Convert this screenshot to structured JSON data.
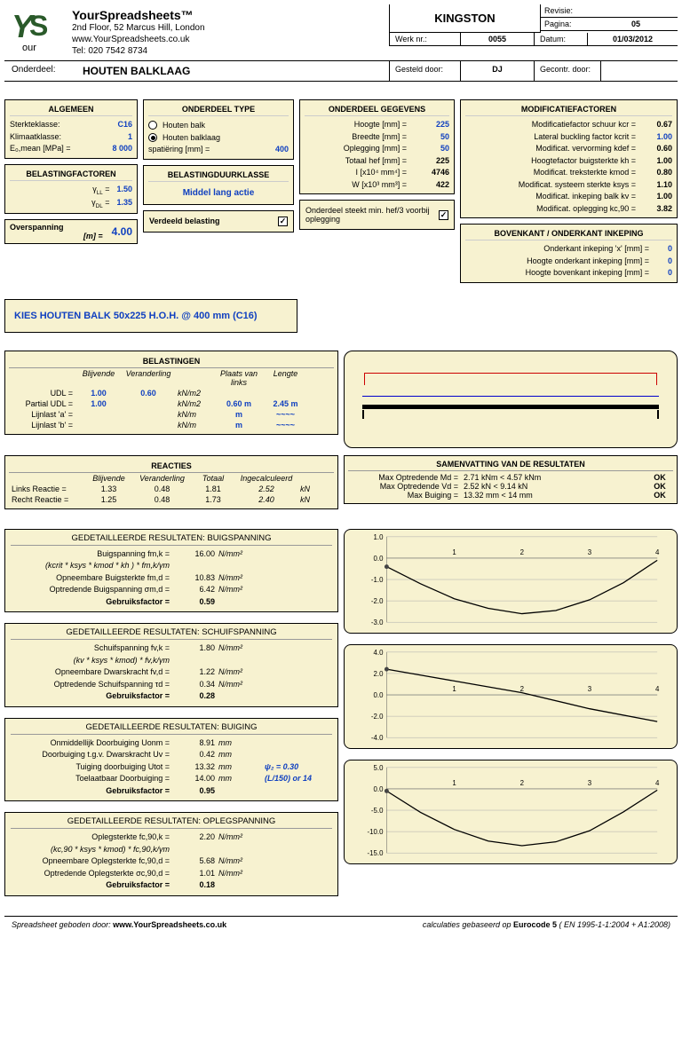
{
  "company": {
    "name": "YourSpreadsheets™",
    "addr1": "2nd Floor, 52 Marcus Hill, London",
    "web": "www.YourSpreadsheets.co.uk",
    "tel": "Tel: 020 7542 8734"
  },
  "title_block": {
    "project": "KINGSTON",
    "revisie_label": "Revisie:",
    "revisie": "",
    "pagina_label": "Pagina:",
    "pagina": "05",
    "werknr_label": "Werk nr.:",
    "werknr": "0055",
    "datum_label": "Datum:",
    "datum": "01/03/2012",
    "onderdeel_label": "Onderdeel:",
    "onderdeel": "HOUTEN BALKLAAG",
    "gesteld_label": "Gesteld door:",
    "gesteld": "DJ",
    "gecontr_label": "Gecontr. door:",
    "gecontr": ""
  },
  "algemeen": {
    "title": "ALGEMEEN",
    "rows": [
      {
        "l": "Sterkteklasse:",
        "v": "C16"
      },
      {
        "l": "Klimaatklasse:",
        "v": "1"
      },
      {
        "l": "E₀,mean [MPa] =",
        "v": "8 000"
      }
    ]
  },
  "belastingfactoren": {
    "title": "BELASTINGFACTOREN",
    "yll_l": "γLL =",
    "yll": "1.50",
    "ydl_l": "γDL =",
    "ydl": "1.35"
  },
  "overspanning": {
    "label1": "Overspanning",
    "label2": "[m] =",
    "val": "4.00"
  },
  "onderdeel_type": {
    "title": "ONDERDEEL TYPE",
    "opt1": "Houten balk",
    "opt2": "Houten balklaag",
    "spat_l": "spatiëring [mm] =",
    "spat_v": "400"
  },
  "belastingduur": {
    "title": "BELASTINGDUURKLASSE",
    "val": "Middel lang actie"
  },
  "verdeeld": {
    "label": "Verdeeld belasting"
  },
  "gegevens": {
    "title": "ONDERDEEL GEGEVENS",
    "rows": [
      {
        "l": "Hoogte [mm] =",
        "v": "225",
        "blue": true
      },
      {
        "l": "Breedte [mm] =",
        "v": "50",
        "blue": true
      },
      {
        "l": "Oplegging [mm] =",
        "v": "50",
        "blue": true
      },
      {
        "l": "Totaal hef [mm] =",
        "v": "225"
      },
      {
        "l": "I [x10⁴ mm⁴] =",
        "v": "4746"
      },
      {
        "l": "W [x10³ mm³] =",
        "v": "422"
      }
    ]
  },
  "steekt": {
    "text": "Onderdeel steekt min. hef/3 voorbij oplegging"
  },
  "modfact": {
    "title": "MODIFICATIEFACTOREN",
    "rows": [
      {
        "l": "Modificatiefactor schuur kcr =",
        "v": "0.67"
      },
      {
        "l": "Lateral buckling factor kcrit =",
        "v": "1.00",
        "blue": true
      },
      {
        "l": "Modificat. vervorming kdef =",
        "v": "0.60"
      },
      {
        "l": "Hoogtefactor buigsterkte kh =",
        "v": "1.00"
      },
      {
        "l": "Modificat. treksterkte kmod =",
        "v": "0.80"
      },
      {
        "l": "Modificat. systeem sterkte ksys =",
        "v": "1.10"
      },
      {
        "l": "Modificat. inkeping balk kv =",
        "v": "1.00"
      },
      {
        "l": "Modificat. oplegging kc,90 =",
        "v": "3.82"
      }
    ]
  },
  "inkeping": {
    "title": "BOVENKANT / ONDERKANT INKEPING",
    "rows": [
      {
        "l": "Onderkant inkeping 'x' [mm] =",
        "v": "0"
      },
      {
        "l": "Hoogte onderkant inkeping [mm] =",
        "v": "0"
      },
      {
        "l": "Hoogte bovenkant inkeping [mm] =",
        "v": "0"
      }
    ]
  },
  "selection": "KIES HOUTEN BALK 50x225 H.O.H. @ 400 mm (C16)",
  "belastingen": {
    "title": "BELASTINGEN",
    "cols": [
      "",
      "Blijvende",
      "Veranderling",
      "",
      "Plaats van links",
      "Lengte"
    ],
    "rows": [
      {
        "l": "UDL =",
        "b": "1.00",
        "v": "0.60",
        "u": "kN/m2",
        "p": "",
        "len": ""
      },
      {
        "l": "Partial UDL =",
        "b": "1.00",
        "v": "",
        "u": "kN/m2",
        "p": "0.60 m",
        "len": "2.45 m"
      },
      {
        "l": "Lijnlast 'a' =",
        "b": "",
        "v": "",
        "u": "kN/m",
        "p": "m",
        "len": "~~~~"
      },
      {
        "l": "Lijnlast 'b' =",
        "b": "",
        "v": "",
        "u": "kN/m",
        "p": "m",
        "len": "~~~~"
      }
    ]
  },
  "reacties": {
    "title": "REACTIES",
    "cols": [
      "",
      "Blijvende",
      "Veranderling",
      "Totaal",
      "Ingecalculeerd",
      ""
    ],
    "rows": [
      {
        "l": "Links Reactie =",
        "b": "1.33",
        "v": "0.48",
        "t": "1.81",
        "i": "2.52",
        "u": "kN"
      },
      {
        "l": "Recht Reactie =",
        "b": "1.25",
        "v": "0.48",
        "t": "1.73",
        "i": "2.40",
        "u": "kN"
      }
    ]
  },
  "samenvatting": {
    "title": "SAMENVATTING VAN DE RESULTATEN",
    "rows": [
      {
        "l": "Max Optredende Md =",
        "v": "2.71 kNm < 4.57 kNm",
        "ok": "OK"
      },
      {
        "l": "Max Optredende Vd =",
        "v": "2.52 kN < 9.14 kN",
        "ok": "OK"
      },
      {
        "l": "Max Buiging =",
        "v": "13.32 mm < 14 mm",
        "ok": "OK"
      }
    ]
  },
  "buigspanning": {
    "title": "GEDETAILLEERDE RESULTATEN: BUIGSPANNING",
    "rows": [
      {
        "l": "Buigspanning fm,k =",
        "v": "16.00",
        "u": "N/mm²"
      },
      {
        "l": "(kcrit * ksys * kmod * kh ) * fm,k/γm",
        "v": "",
        "u": "",
        "formula": true
      },
      {
        "l": "Opneembare Buigsterkte fm,d =",
        "v": "10.83",
        "u": "N/mm²"
      },
      {
        "l": "Optredende Buigspanning σm,d =",
        "v": "6.42",
        "u": "N/mm²"
      }
    ],
    "gebruik_l": "Gebruiksfactor =",
    "gebruik_v": "0.59"
  },
  "schuifspanning": {
    "title": "GEDETAILLEERDE RESULTATEN: SCHUIFSPANNING",
    "rows": [
      {
        "l": "Schuifspanning fv,k =",
        "v": "1.80",
        "u": "N/mm²"
      },
      {
        "l": "(kv * ksys * kmod) * fv,k/γm",
        "v": "",
        "u": "",
        "formula": true
      },
      {
        "l": "Opneembare Dwarskracht fv,d =",
        "v": "1.22",
        "u": "N/mm²"
      },
      {
        "l": "Optredende Schuifspanning τd =",
        "v": "0.34",
        "u": "N/mm²"
      }
    ],
    "gebruik_l": "Gebruiksfactor =",
    "gebruik_v": "0.28"
  },
  "buiging": {
    "title": "GEDETAILLEERDE RESULTATEN: BUIGING",
    "rows": [
      {
        "l": "Onmiddellijk Doorbuiging Uonm =",
        "v": "8.91",
        "u": "mm"
      },
      {
        "l": "Doorbuiging t.g.v. Dwarskracht Uv =",
        "v": "0.42",
        "u": "mm"
      },
      {
        "l": "Tuiging doorbuiging Utot =",
        "v": "13.32",
        "u": "mm",
        "extra": "ψ₂ = 0.30"
      },
      {
        "l": "Toelaatbaar Doorbuiging =",
        "v": "14.00",
        "u": "mm",
        "extra": "(L/150) or 14"
      }
    ],
    "gebruik_l": "Gebruiksfactor =",
    "gebruik_v": "0.95"
  },
  "oplegspanning": {
    "title": "GEDETAILLEERDE RESULTATEN: OPLEGSPANNING",
    "rows": [
      {
        "l": "Oplegsterkte fc,90,k =",
        "v": "2.20",
        "u": "N/mm²"
      },
      {
        "l": "(kc,90 * ksys * kmod) * fc,90,k/γm",
        "v": "",
        "u": "",
        "formula": true
      },
      {
        "l": "Opneembare Oplegsterkte fc,90,d =",
        "v": "5.68",
        "u": "N/mm²"
      },
      {
        "l": "Optredende Oplegsterkte σc,90,d =",
        "v": "1.01",
        "u": "N/mm²"
      }
    ],
    "gebruik_l": "Gebruiksfactor =",
    "gebruik_v": "0.18"
  },
  "charts": {
    "moment": {
      "ymin": -3.0,
      "ymax": 1.0,
      "yticks": [
        -3.0,
        -2.0,
        -1.0,
        0.0,
        1.0
      ],
      "xmax": 4,
      "points": [
        [
          0,
          -0.4
        ],
        [
          0.5,
          -1.2
        ],
        [
          1,
          -1.9
        ],
        [
          1.5,
          -2.35
        ],
        [
          2,
          -2.6
        ],
        [
          2.5,
          -2.45
        ],
        [
          3,
          -1.95
        ],
        [
          3.5,
          -1.15
        ],
        [
          4,
          -0.1
        ]
      ]
    },
    "shear": {
      "ymin": -4.0,
      "ymax": 4.0,
      "yticks": [
        -4.0,
        -2.0,
        0.0,
        2.0,
        4.0
      ],
      "xmax": 4,
      "points": [
        [
          0,
          2.4
        ],
        [
          1,
          1.3
        ],
        [
          2,
          0.2
        ],
        [
          3,
          -1.3
        ],
        [
          4,
          -2.5
        ]
      ]
    },
    "defl": {
      "ymin": -15.0,
      "ymax": 5.0,
      "yticks": [
        -15.0,
        -10.0,
        -5.0,
        0.0,
        5.0
      ],
      "xmax": 4,
      "points": [
        [
          0,
          -0.5
        ],
        [
          0.5,
          -5.5
        ],
        [
          1,
          -9.5
        ],
        [
          1.5,
          -12.2
        ],
        [
          2,
          -13.3
        ],
        [
          2.5,
          -12.4
        ],
        [
          3,
          -9.8
        ],
        [
          3.5,
          -5.4
        ],
        [
          4,
          -0.3
        ]
      ]
    }
  },
  "footer": {
    "left1": "Spreadsheet geboden door: ",
    "left2": "www.YourSpreadsheets.co.uk",
    "right1": "calculaties gebaseerd op ",
    "right2": "Eurocode 5",
    "right3": " ( EN 1995-1-1:2004 + A1:2008)"
  }
}
